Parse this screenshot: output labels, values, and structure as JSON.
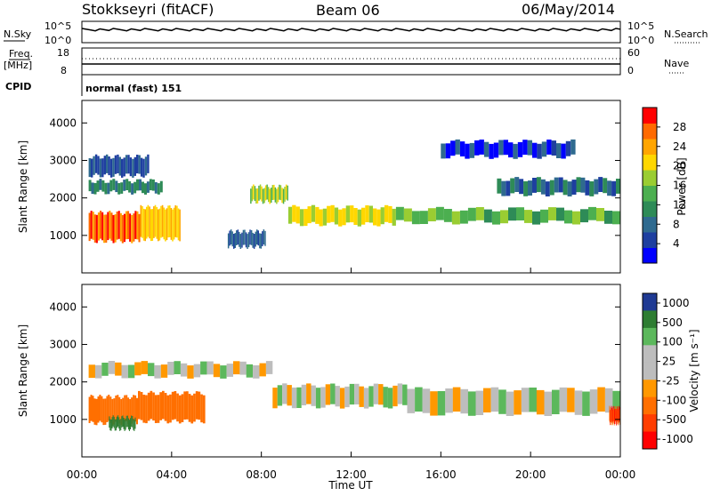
{
  "header": {
    "station": "Stokkseyri (fitACF)",
    "beam": "Beam 06",
    "date": "06/May/2014"
  },
  "summary": {
    "nsky_label": "N.Sky",
    "nsky_ticks": [
      "10^5",
      "10^0"
    ],
    "nsearch_label": "N.Search",
    "nsearch_ticks": [
      "10^5",
      "10^0"
    ],
    "freq_label": "Freq.",
    "freq_unit": "[MHz]",
    "freq_ticks": [
      "18",
      "8"
    ],
    "nave_label": "Nave",
    "nave_ticks": [
      "60",
      "0"
    ],
    "cpid_label": "CPID",
    "cpid_value": "normal (fast) 151"
  },
  "colors": {
    "power_scale": [
      "#0000ff",
      "#1e3fa0",
      "#2f6a8f",
      "#2e8b57",
      "#4caf50",
      "#9acd32",
      "#ffd700",
      "#ffa500",
      "#ff6a00",
      "#ff0000"
    ],
    "velocity_scale": [
      "#1f3a93",
      "#2e7d32",
      "#5cb85c",
      "#bdbdbd",
      "#bdbdbd",
      "#ff9800",
      "#ff6f00",
      "#ff3d00",
      "#ff0000"
    ]
  },
  "chart_data": [
    {
      "type": "heatmap",
      "title": "Power",
      "ylabel": "Slant Range [km]",
      "xlabel": "",
      "xlim": [
        "00:00",
        "24:00"
      ],
      "ylim": [
        0,
        4600
      ],
      "yticks": [
        "1000",
        "2000",
        "3000",
        "4000"
      ],
      "colorbar": {
        "label": "Power [dB]",
        "ticks": [
          "4",
          "8",
          "12",
          "16",
          "20",
          "24",
          "28"
        ],
        "range": [
          0,
          32
        ]
      },
      "bands": [
        {
          "t0": 0.3,
          "t1": 2.6,
          "r0": 850,
          "r1": 1600,
          "level": 27
        },
        {
          "t0": 2.6,
          "t1": 4.4,
          "r0": 900,
          "r1": 1750,
          "level": 22
        },
        {
          "t0": 0.3,
          "t1": 3.6,
          "r0": 2150,
          "r1": 2450,
          "level": 10
        },
        {
          "t0": 0.3,
          "t1": 3.0,
          "r0": 2600,
          "r1": 3100,
          "level": 6
        },
        {
          "t0": 7.5,
          "t1": 9.2,
          "r0": 1900,
          "r1": 2300,
          "level": 17
        },
        {
          "t0": 9.2,
          "t1": 14.0,
          "r0": 1300,
          "r1": 1750,
          "level": 19
        },
        {
          "t0": 14.0,
          "t1": 24.0,
          "r0": 1350,
          "r1": 1700,
          "level": 15
        },
        {
          "t0": 18.5,
          "t1": 24.0,
          "r0": 2100,
          "r1": 2500,
          "level": 8
        },
        {
          "t0": 16.0,
          "t1": 22.0,
          "r0": 3100,
          "r1": 3500,
          "level": 4
        },
        {
          "t0": 6.5,
          "t1": 8.2,
          "r0": 700,
          "r1": 1100,
          "level": 7
        }
      ]
    },
    {
      "type": "heatmap",
      "title": "Velocity",
      "ylabel": "Slant Range [km]",
      "xlabel": "Time UT",
      "xlim": [
        "00:00",
        "24:00"
      ],
      "ylim": [
        0,
        4600
      ],
      "yticks": [
        "1000",
        "2000",
        "3000",
        "4000"
      ],
      "xticks": [
        "00:00",
        "04:00",
        "08:00",
        "12:00",
        "16:00",
        "20:00",
        "00:00"
      ],
      "colorbar": {
        "label": "Velocity [m s⁻¹]",
        "ticks": [
          "1000",
          "500",
          "100",
          "25",
          "-25",
          "-100",
          "-500",
          "-1000"
        ]
      },
      "bands": [
        {
          "t0": 0.3,
          "t1": 2.5,
          "r0": 900,
          "r1": 1600,
          "level": -400
        },
        {
          "t0": 2.5,
          "t1": 5.5,
          "r0": 950,
          "r1": 1700,
          "level": -250
        },
        {
          "t0": 1.2,
          "t1": 2.4,
          "r0": 750,
          "r1": 1050,
          "level": 200
        },
        {
          "t0": 0.3,
          "t1": 8.5,
          "r0": 2150,
          "r1": 2500,
          "level": 0
        },
        {
          "t0": 8.5,
          "t1": 14.5,
          "r0": 1350,
          "r1": 1900,
          "level": 0
        },
        {
          "t0": 14.5,
          "t1": 24.0,
          "r0": 1150,
          "r1": 1800,
          "level": 0
        },
        {
          "t0": 23.5,
          "t1": 24.0,
          "r0": 900,
          "r1": 1300,
          "level": -500
        }
      ]
    }
  ]
}
